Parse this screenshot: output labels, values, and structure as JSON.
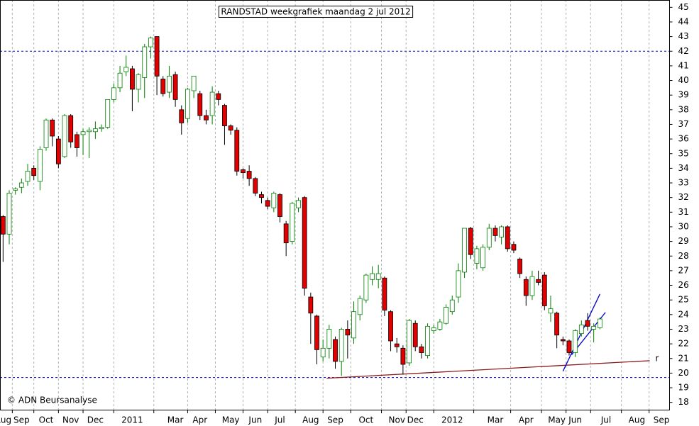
{
  "chart_data": {
    "type": "candlestick",
    "title": "RANDSTAD weekgrafiek maandag 2 jul 2012",
    "copyright": "© ADN Beursanalyse",
    "categories": [
      "Aug",
      null,
      null,
      "Sep",
      null,
      null,
      null,
      "Oct",
      null,
      null,
      null,
      "Nov",
      null,
      null,
      null,
      "Dec",
      null,
      null,
      null,
      null,
      null,
      "2011",
      null,
      null,
      null,
      null,
      null,
      null,
      "Mar",
      null,
      null,
      null,
      "Apr",
      null,
      null,
      null,
      null,
      "May",
      null,
      null,
      null,
      "Jun",
      null,
      null,
      null,
      "Jul",
      null,
      null,
      null,
      null,
      "Aug",
      null,
      null,
      null,
      "Sep",
      null,
      null,
      null,
      null,
      "Oct",
      null,
      null,
      null,
      null,
      "Nov",
      null,
      null,
      "Dec",
      null,
      null,
      null,
      null,
      null,
      "2012",
      null,
      null,
      null,
      null,
      null,
      null,
      "Mar",
      null,
      null,
      null,
      null,
      "Apr",
      null,
      null,
      null,
      null,
      "May",
      null,
      null,
      "Jun",
      null,
      null,
      null,
      null,
      "Jul",
      null,
      null,
      null,
      null,
      "Aug",
      null,
      null,
      null,
      "Sep",
      null
    ],
    "open": [
      30.7,
      29.5,
      32.5,
      32.7,
      33.1,
      34.0,
      33.1,
      35.4,
      37.3,
      36.0,
      34.8,
      37.6,
      36.3,
      36.3,
      36.5,
      36.5,
      36.7,
      36.8,
      38.7,
      39.5,
      40.6,
      40.8,
      39.4,
      40.2,
      42.3,
      43.0,
      40.1,
      39.2,
      40.4,
      38.0,
      37.4,
      39.3,
      39.1,
      37.6,
      37.6,
      39.1,
      38.3,
      36.9,
      36.6,
      33.9,
      33.8,
      33.3,
      32.2,
      31.8,
      31.3,
      32.2,
      30.2,
      29.0,
      31.3,
      32.0,
      25.2,
      23.9,
      21.1,
      21.7,
      22.3,
      20.8,
      23.0,
      22.4,
      24.0,
      25.0,
      26.4,
      26.4,
      26.5,
      24.2,
      22.0,
      21.7,
      20.7,
      23.4,
      21.8,
      21.2,
      22.9,
      23.0,
      23.4,
      24.2,
      25.2,
      26.9,
      29.9,
      27.5,
      27.2,
      28.6,
      29.9,
      29.3,
      30.0,
      28.8,
      27.8,
      26.4,
      25.3,
      26.4,
      26.7,
      24.1,
      24.1,
      22.3,
      22.2,
      21.4,
      22.7,
      23.6,
      23.0,
      23.1,
      null,
      null,
      null,
      null,
      null,
      null,
      null,
      null,
      null,
      null,
      null
    ],
    "high": [
      30.8,
      32.5,
      32.7,
      33.3,
      34.3,
      34.2,
      35.5,
      37.4,
      37.4,
      36.2,
      37.7,
      37.7,
      36.5,
      36.7,
      36.8,
      37.2,
      37.0,
      38.7,
      39.8,
      41.0,
      41.7,
      41.0,
      40.5,
      42.5,
      43.0,
      43.0,
      40.3,
      41.0,
      40.6,
      38.3,
      39.5,
      40.3,
      39.3,
      38.0,
      39.6,
      39.3,
      38.4,
      37.0,
      36.8,
      34.0,
      34.2,
      33.4,
      32.4,
      32.0,
      32.4,
      32.3,
      30.4,
      31.7,
      32.0,
      32.1,
      25.5,
      24.0,
      22.3,
      23.3,
      22.5,
      23.1,
      23.6,
      24.9,
      25.3,
      26.8,
      27.3,
      27.4,
      26.6,
      24.3,
      22.4,
      21.9,
      23.7,
      23.6,
      22.0,
      23.4,
      23.3,
      23.7,
      24.7,
      25.3,
      27.5,
      29.9,
      30.0,
      28.7,
      28.8,
      30.2,
      30.1,
      30.1,
      30.1,
      29.0,
      27.9,
      26.6,
      27.0,
      27.0,
      26.9,
      25.3,
      24.2,
      22.5,
      22.3,
      23.0,
      23.6,
      24.1,
      23.4,
      23.8,
      null,
      null,
      null,
      null,
      null,
      null,
      null,
      null,
      null,
      null,
      null
    ],
    "low": [
      27.6,
      28.8,
      32.2,
      32.3,
      32.8,
      33.2,
      32.5,
      35.2,
      35.5,
      34.0,
      34.7,
      35.4,
      34.8,
      34.9,
      34.7,
      36.0,
      36.5,
      36.7,
      38.5,
      39.2,
      40.3,
      37.9,
      38.5,
      38.8,
      41.5,
      39.0,
      38.9,
      38.8,
      38.2,
      36.3,
      37.1,
      38.8,
      37.3,
      37.0,
      37.0,
      38.3,
      35.6,
      36.3,
      33.5,
      33.3,
      32.8,
      32.1,
      31.6,
      31.2,
      31.0,
      30.3,
      28.0,
      28.8,
      31.0,
      25.3,
      22.0,
      20.6,
      20.8,
      21.0,
      20.3,
      19.8,
      21.0,
      22.0,
      23.6,
      24.8,
      26.0,
      25.8,
      23.9,
      21.5,
      21.4,
      19.9,
      20.5,
      21.5,
      21.0,
      21.0,
      22.7,
      22.9,
      23.3,
      24.0,
      24.8,
      26.5,
      27.8,
      27.1,
      27.0,
      28.4,
      29.0,
      28.8,
      28.3,
      28.2,
      26.5,
      24.6,
      25.0,
      26.0,
      24.3,
      23.5,
      21.7,
      21.9,
      21.2,
      21.1,
      22.5,
      22.9,
      22.1,
      23.0,
      null,
      null,
      null,
      null,
      null,
      null,
      null,
      null,
      null,
      null,
      null
    ],
    "close": [
      29.5,
      32.3,
      32.6,
      33.0,
      33.8,
      33.5,
      35.3,
      37.3,
      36.2,
      34.3,
      37.6,
      35.8,
      35.4,
      36.5,
      36.6,
      36.7,
      36.8,
      38.7,
      39.5,
      40.5,
      40.9,
      39.4,
      40.4,
      42.3,
      42.9,
      40.3,
      39.1,
      40.3,
      38.7,
      37.1,
      39.4,
      40.3,
      37.6,
      37.3,
      39.2,
      38.7,
      36.9,
      36.6,
      33.8,
      33.7,
      33.3,
      32.3,
      32.0,
      31.4,
      32.3,
      30.7,
      28.9,
      31.6,
      31.8,
      25.8,
      24.1,
      21.6,
      21.7,
      23.0,
      20.8,
      23.0,
      22.6,
      24.2,
      25.1,
      26.7,
      26.8,
      26.8,
      24.3,
      22.2,
      21.8,
      20.6,
      23.6,
      21.8,
      21.4,
      23.2,
      23.1,
      23.5,
      24.5,
      25.0,
      27.0,
      29.9,
      28.1,
      28.5,
      28.6,
      29.9,
      29.4,
      30.0,
      28.5,
      28.4,
      26.8,
      25.3,
      26.6,
      26.2,
      24.6,
      24.4,
      22.6,
      22.2,
      21.4,
      22.9,
      23.3,
      23.2,
      23.2,
      23.7,
      null,
      null,
      null,
      null,
      null,
      null,
      null,
      null,
      null,
      null,
      null
    ],
    "up_color": "#008000",
    "down_color": "#e00000",
    "ylim": [
      17.5,
      45.5
    ],
    "yticks": [
      18,
      19,
      20,
      21,
      22,
      23,
      24,
      25,
      26,
      27,
      28,
      29,
      30,
      31,
      32,
      33,
      34,
      35,
      36,
      37,
      38,
      39,
      40,
      41,
      42,
      43,
      44,
      45
    ],
    "grid": true,
    "hlines": [
      42,
      19.7
    ],
    "hline_color": "#0000cc",
    "trendlines": [
      {
        "color": "#8b1a1a",
        "from": [
          52.6,
          19.65
        ],
        "to": [
          105.1,
          20.85
        ],
        "label": "r"
      },
      {
        "color": "#0000cc",
        "from": [
          91.0,
          20.13
        ],
        "to": [
          97.0,
          25.4
        ]
      },
      {
        "color": "#0000cc",
        "from": [
          92.4,
          21.25
        ],
        "to": [
          97.9,
          24.15
        ]
      }
    ]
  }
}
